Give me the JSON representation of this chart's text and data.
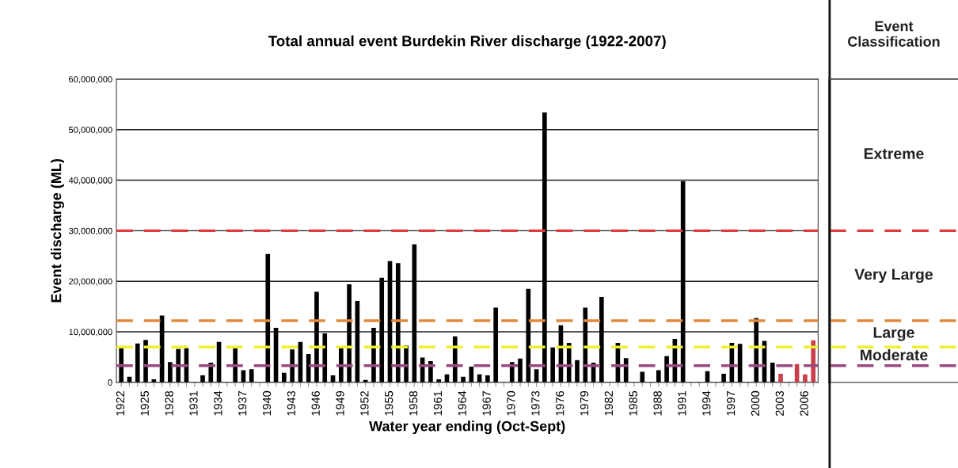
{
  "chart_data": {
    "type": "bar",
    "title": "Total annual event Burdekin River discharge (1922-2007)",
    "xlabel": "Water year ending (Oct-Sept)",
    "ylabel": "Event discharge (ML)",
    "categories": [
      "1922",
      null,
      null,
      "1925",
      null,
      null,
      "1928",
      null,
      null,
      "1931",
      null,
      null,
      "1934",
      null,
      null,
      "1937",
      null,
      null,
      "1940",
      null,
      null,
      "1943",
      null,
      null,
      "1946",
      null,
      null,
      "1949",
      null,
      null,
      "1952",
      null,
      null,
      "1955",
      null,
      null,
      "1958",
      null,
      null,
      "1961",
      null,
      null,
      "1964",
      null,
      null,
      "1967",
      null,
      null,
      "1970",
      null,
      null,
      "1973",
      null,
      null,
      "1976",
      null,
      null,
      "1979",
      null,
      null,
      "1982",
      null,
      null,
      "1985",
      null,
      null,
      "1988",
      null,
      null,
      "1991",
      null,
      null,
      "1994",
      null,
      null,
      "1997",
      null,
      null,
      "2000",
      null,
      null,
      "2003",
      null,
      null,
      "2006",
      null
    ],
    "values": [
      6900000,
      1100000,
      7700000,
      8400000,
      600000,
      13200000,
      4000000,
      6600000,
      6800000,
      0,
      1400000,
      3900000,
      8000000,
      0,
      6900000,
      2400000,
      2600000,
      0,
      25400000,
      10800000,
      1900000,
      6500000,
      8000000,
      5600000,
      17900000,
      9700000,
      1400000,
      6800000,
      19400000,
      16100000,
      500000,
      10800000,
      20700000,
      24000000,
      23600000,
      7300000,
      27300000,
      4900000,
      4200000,
      600000,
      1600000,
      9100000,
      1100000,
      3100000,
      1600000,
      1400000,
      14800000,
      0,
      4000000,
      4700000,
      18500000,
      2600000,
      53400000,
      6900000,
      11300000,
      7800000,
      4400000,
      14800000,
      3900000,
      16900000,
      0,
      7800000,
      4800000,
      0,
      2100000,
      0,
      2400000,
      5200000,
      8600000,
      39800000,
      0,
      0,
      2200000,
      0,
      1700000,
      7800000,
      7600000,
      0,
      12700000,
      8200000,
      3900000,
      1700000,
      0,
      3600000,
      1600000,
      8300000
    ],
    "colors": [
      "#000000",
      "#000000",
      "#000000",
      "#000000",
      "#000000",
      "#000000",
      "#000000",
      "#000000",
      "#000000",
      "#000000",
      "#000000",
      "#000000",
      "#000000",
      "#000000",
      "#000000",
      "#000000",
      "#000000",
      "#000000",
      "#000000",
      "#000000",
      "#000000",
      "#000000",
      "#000000",
      "#000000",
      "#000000",
      "#000000",
      "#000000",
      "#000000",
      "#000000",
      "#000000",
      "#000000",
      "#000000",
      "#000000",
      "#000000",
      "#000000",
      "#000000",
      "#000000",
      "#000000",
      "#000000",
      "#000000",
      "#000000",
      "#000000",
      "#000000",
      "#000000",
      "#000000",
      "#000000",
      "#000000",
      "#000000",
      "#000000",
      "#000000",
      "#000000",
      "#000000",
      "#000000",
      "#000000",
      "#000000",
      "#000000",
      "#000000",
      "#000000",
      "#000000",
      "#000000",
      "#000000",
      "#000000",
      "#000000",
      "#000000",
      "#000000",
      "#000000",
      "#000000",
      "#000000",
      "#000000",
      "#000000",
      "#000000",
      "#000000",
      "#000000",
      "#000000",
      "#000000",
      "#000000",
      "#000000",
      "#000000",
      "#000000",
      "#000000",
      "#000000",
      "#c8404c",
      "#c8404c",
      "#c8404c",
      "#c8404c",
      "#c8404c"
    ],
    "ylim": [
      0,
      60000000
    ],
    "yticks": [
      {
        "value": 0,
        "label": "0"
      },
      {
        "value": 10000000,
        "label": "10,000,000"
      },
      {
        "value": 20000000,
        "label": "20,000,000"
      },
      {
        "value": 30000000,
        "label": "30,000,000"
      },
      {
        "value": 40000000,
        "label": "40,000,000"
      },
      {
        "value": 50000000,
        "label": "50,000,000"
      },
      {
        "value": 60000000,
        "label": "60,000,000"
      }
    ],
    "grid": "y",
    "ref_lines": [
      {
        "axis": "y",
        "value": 30000000,
        "color": "#e0393e",
        "line_style": "dashed"
      },
      {
        "axis": "y",
        "value": 12200000,
        "color": "#e08a3c",
        "line_style": "dashed"
      },
      {
        "axis": "y",
        "value": 7000000,
        "color": "#f0f030",
        "line_style": "dashed"
      },
      {
        "axis": "y",
        "value": 3300000,
        "color": "#9a4a80",
        "line_style": "dashed"
      }
    ],
    "annotations": [
      "Event\nClassification",
      "Extreme",
      "Very Large",
      "Large",
      "Moderate"
    ]
  }
}
